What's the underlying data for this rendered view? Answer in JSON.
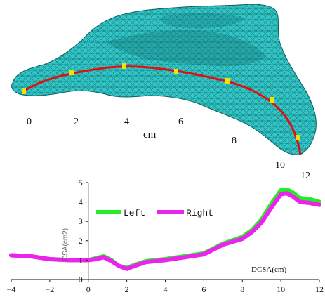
{
  "mesh": {
    "unit_label": "cm",
    "centerline_labels": [
      "0",
      "2",
      "4",
      "6",
      "8",
      "10",
      "12"
    ],
    "colors": {
      "mesh_fill": "#33c6c6",
      "mesh_line": "#0b5e63",
      "centerline": "#e01010",
      "marker": "#f2e400"
    }
  },
  "chart_data": {
    "type": "line",
    "title": "",
    "xlabel": "DCSA(cm)",
    "ylabel": "CSA(cm2)",
    "xlim": [
      -4,
      12
    ],
    "ylim": [
      0,
      5
    ],
    "x_ticks": [
      -4,
      -2,
      0,
      2,
      4,
      6,
      8,
      10,
      12
    ],
    "y_ticks": [
      0,
      1,
      2,
      3,
      4,
      5
    ],
    "legend_position": "top-left",
    "series": [
      {
        "name": "Left",
        "color": "#22ee22",
        "x": [
          -4,
          -3,
          -2,
          -1,
          -0.5,
          0,
          0.4,
          0.8,
          1.2,
          1.6,
          2.0,
          2.4,
          3,
          4,
          5,
          6,
          7,
          8,
          8.5,
          9,
          9.5,
          10,
          10.3,
          10.6,
          11,
          11.5,
          12
        ],
        "y": [
          1.25,
          1.2,
          1.05,
          1.0,
          1.0,
          1.0,
          1.1,
          1.2,
          1.0,
          0.7,
          0.6,
          0.75,
          0.95,
          1.05,
          1.2,
          1.35,
          1.85,
          2.2,
          2.55,
          3.1,
          3.9,
          4.6,
          4.65,
          4.5,
          4.2,
          4.15,
          4.0
        ]
      },
      {
        "name": "Right",
        "color": "#ee22ee",
        "x": [
          -4,
          -3,
          -2,
          -1,
          -0.5,
          0,
          0.4,
          0.8,
          1.2,
          1.6,
          2.0,
          2.4,
          3,
          4,
          5,
          6,
          7,
          8,
          8.5,
          9,
          9.5,
          10,
          10.3,
          10.6,
          11,
          11.5,
          12
        ],
        "y": [
          1.25,
          1.2,
          1.05,
          1.0,
          1.0,
          1.0,
          1.05,
          1.15,
          0.95,
          0.7,
          0.55,
          0.7,
          0.9,
          1.0,
          1.15,
          1.3,
          1.8,
          2.1,
          2.45,
          2.95,
          3.7,
          4.4,
          4.45,
          4.3,
          4.0,
          3.95,
          3.85
        ]
      }
    ]
  }
}
